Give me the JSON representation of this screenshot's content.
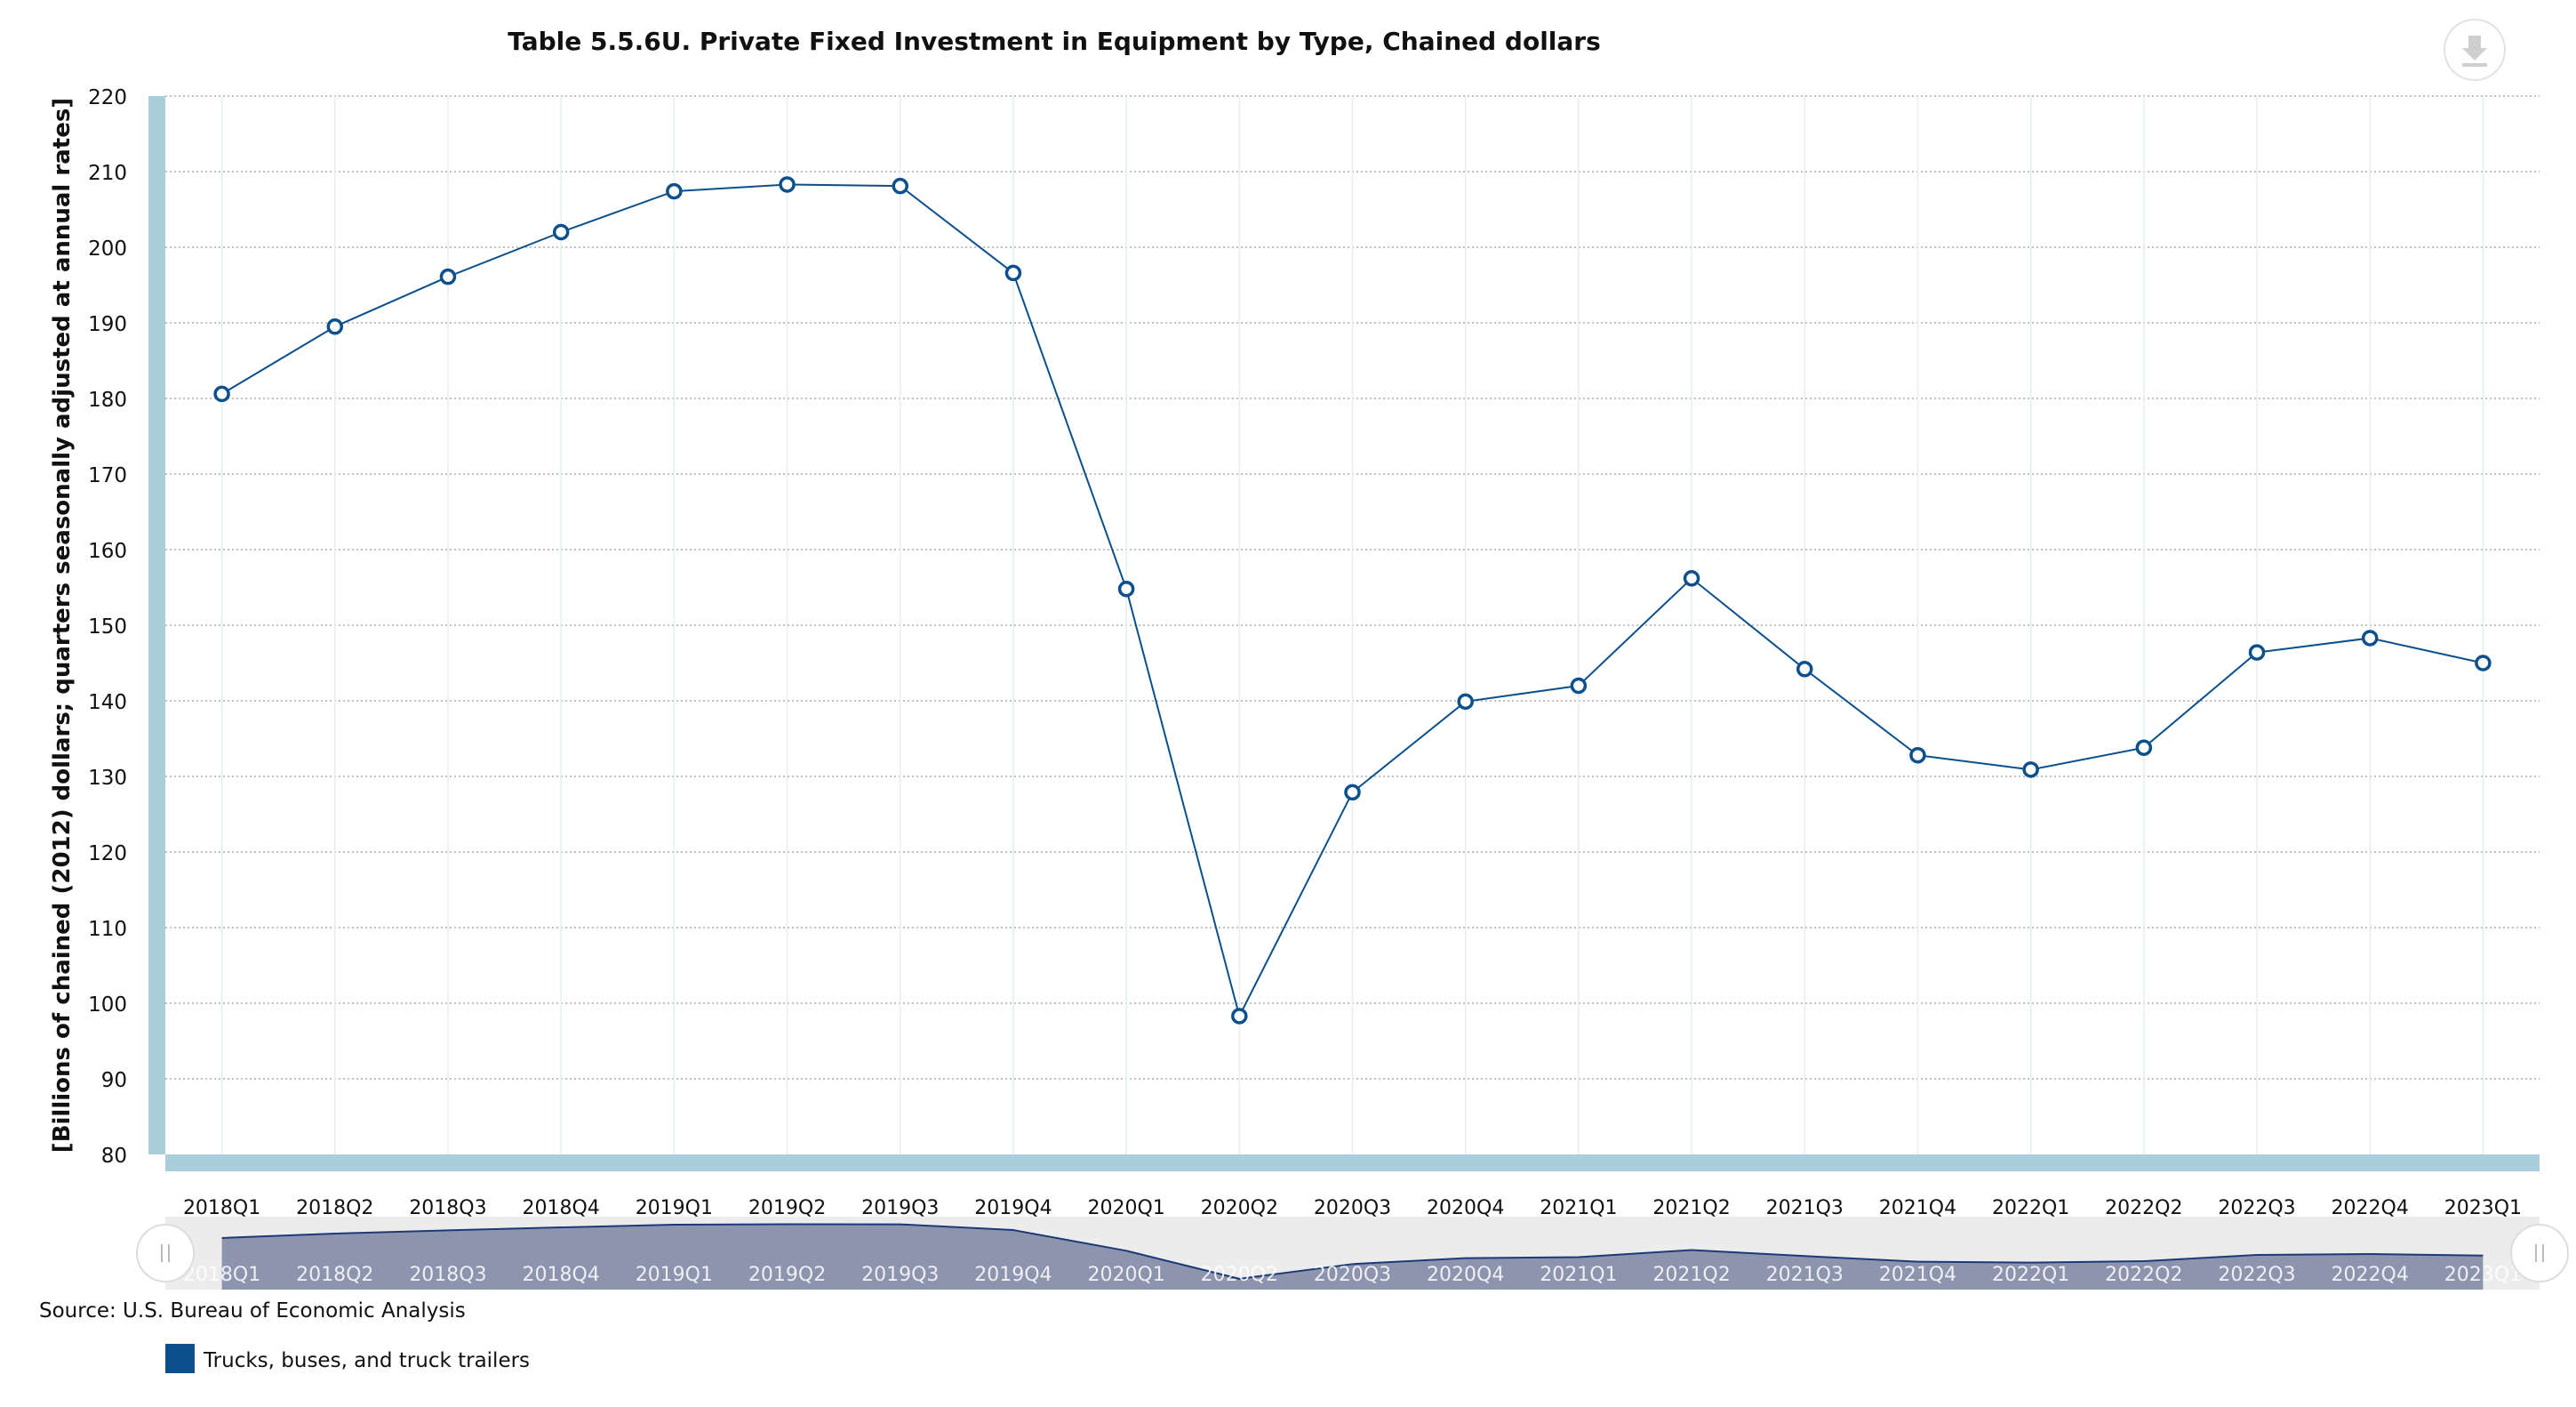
{
  "title": "Table 5.5.6U. Private Fixed Investment in Equipment by Type, Chained dollars",
  "source_text": "Source: U.S. Bureau of Economic Analysis",
  "download_icon": "download-icon",
  "colors": {
    "series": "#0b4f8c",
    "axis_band": "#aacfdc",
    "grid": "#9a9a9a",
    "navigator_fill": "#8d94ad",
    "navigator_bg": "#ececec",
    "legend_swatch": "#0b4f8c"
  },
  "chart_data": {
    "type": "line",
    "title": "Table 5.5.6U. Private Fixed Investment in Equipment by Type, Chained dollars",
    "xlabel": "",
    "ylabel": "[Billions of chained (2012) dollars; quarters seasonally adjusted at annual rates]",
    "ylim": [
      80,
      220
    ],
    "yticks": [
      80,
      90,
      100,
      110,
      120,
      130,
      140,
      150,
      160,
      170,
      180,
      190,
      200,
      210,
      220
    ],
    "categories": [
      "2018Q1",
      "2018Q2",
      "2018Q3",
      "2018Q4",
      "2019Q1",
      "2019Q2",
      "2019Q3",
      "2019Q4",
      "2020Q1",
      "2020Q2",
      "2020Q3",
      "2020Q4",
      "2021Q1",
      "2021Q2",
      "2021Q3",
      "2021Q4",
      "2022Q1",
      "2022Q2",
      "2022Q3",
      "2022Q4",
      "2023Q1"
    ],
    "series": [
      {
        "name": "Trucks, buses, and truck trailers",
        "values": [
          180.6,
          189.5,
          196.1,
          202.0,
          207.4,
          208.3,
          208.1,
          196.6,
          154.8,
          98.3,
          127.9,
          139.9,
          142.0,
          156.2,
          144.2,
          132.8,
          130.9,
          133.8,
          146.4,
          148.3,
          145.0
        ]
      }
    ],
    "grid": true,
    "legend_position": "bottom-left",
    "navigator": true
  }
}
